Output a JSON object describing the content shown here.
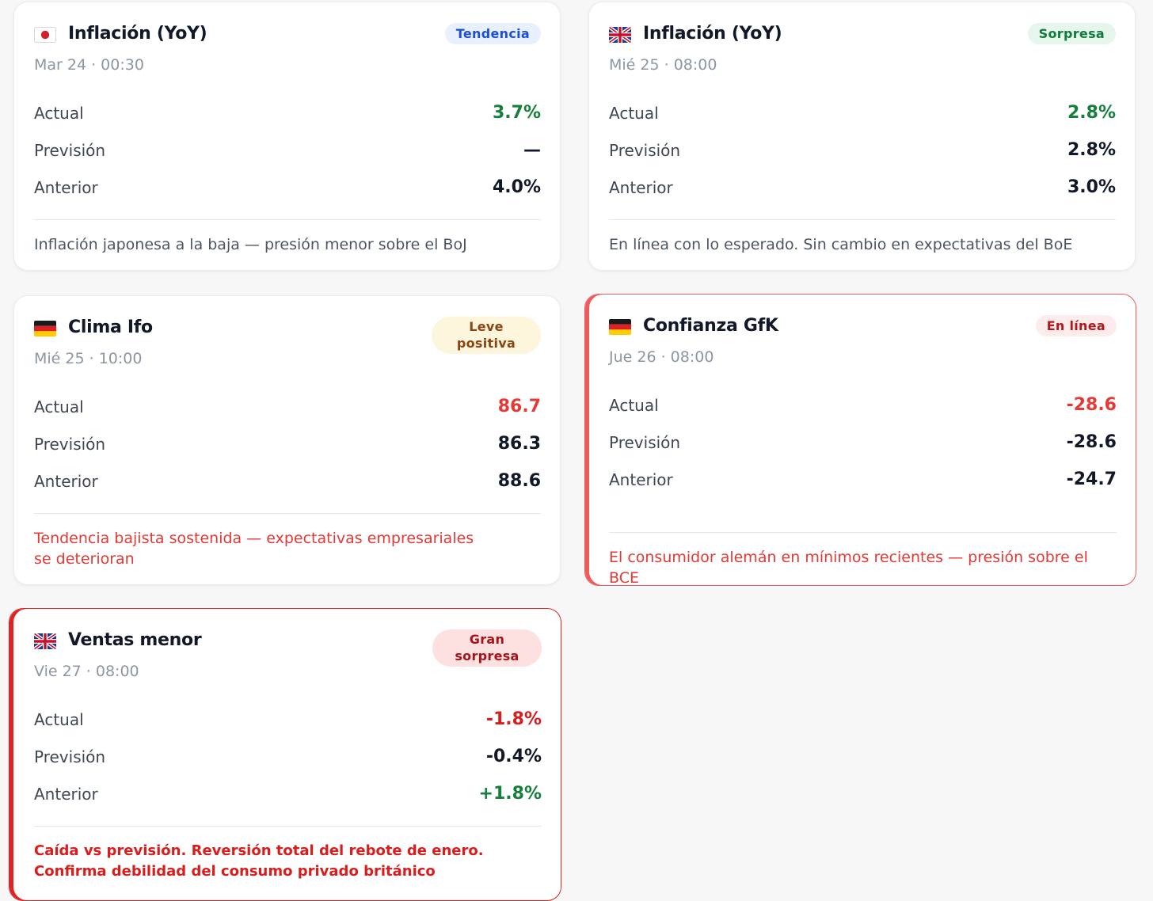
{
  "cards": [
    {
      "title": "Inflación (YoY)",
      "date": "Mar 24 · 00:30",
      "flag_icon": "japan-flag-icon",
      "badge": {
        "label": "Tendencia",
        "bg": "#e8f0fe",
        "color": "#1d4ed8"
      },
      "rows": [
        {
          "label": "Actual",
          "value": "3.7%",
          "color": "#15803d"
        },
        {
          "label": "Previsión",
          "value": "—",
          "color": "#111827"
        },
        {
          "label": "Anterior",
          "value": "4.0%",
          "color": "#111827"
        }
      ],
      "note": "Inflación japonesa a la baja — presión menor sobre el BoJ",
      "note_color": "#4b5563"
    },
    {
      "title": "Inflación (YoY)",
      "date": "Mié 25 · 08:00",
      "flag_icon": "uk-flag-icon",
      "badge": {
        "label": "Sorpresa",
        "bg": "#e6f6ec",
        "color": "#137a3d"
      },
      "rows": [
        {
          "label": "Actual",
          "value": "2.8%",
          "color": "#15803d"
        },
        {
          "label": "Previsión",
          "value": "2.8%",
          "color": "#111827"
        },
        {
          "label": "Anterior",
          "value": "3.0%",
          "color": "#111827"
        }
      ],
      "note": "En línea con lo esperado. Sin cambio en expectativas del BoE",
      "note_color": "#4b5563"
    },
    {
      "title": "Clima Ifo",
      "date": "Mié 25 · 10:00",
      "flag_icon": "germany-flag-icon",
      "badge": {
        "label": "Leve positiva",
        "bg": "#fdf6dc",
        "color": "#8a4412"
      },
      "rows": [
        {
          "label": "Actual",
          "value": "86.7",
          "color": "#e53935"
        },
        {
          "label": "Previsión",
          "value": "86.3",
          "color": "#111827"
        },
        {
          "label": "Anterior",
          "value": "88.6",
          "color": "#111827"
        }
      ],
      "note": "Tendencia bajista sostenida — expectativas empresariales se deterioran",
      "note_color": "#e53935"
    },
    {
      "title": "Confianza GfK",
      "date": "Jue 26 · 08:00",
      "flag_icon": "germany-flag-icon",
      "badge": {
        "label": "En línea",
        "bg": "#fdecec",
        "color": "#b4161b"
      },
      "rows": [
        {
          "label": "Actual",
          "value": "-28.6",
          "color": "#e53935"
        },
        {
          "label": "Previsión",
          "value": "-28.6",
          "color": "#111827"
        },
        {
          "label": "Anterior",
          "value": "-24.7",
          "color": "#111827"
        }
      ],
      "note": "El consumidor alemán en mínimos recientes — presión sobre el BCE",
      "note_color": "#e53935"
    },
    {
      "title": "Ventas menor",
      "date": "Vie 27 · 08:00",
      "flag_icon": "uk-flag-icon",
      "badge": {
        "label": "Gran sorpresa",
        "bg": "#fde0e0",
        "color": "#a6131a"
      },
      "rows": [
        {
          "label": "Actual",
          "value": "-1.8%",
          "color": "#d91c1c"
        },
        {
          "label": "Previsión",
          "value": "-0.4%",
          "color": "#111827"
        },
        {
          "label": "Anterior",
          "value": "+1.8%",
          "color": "#15803d"
        }
      ],
      "note": "Caída vs previsión. Reversión total del rebote de enero. Confirma debilidad del consumo privado británico",
      "note_color": "#d91c1c"
    }
  ]
}
